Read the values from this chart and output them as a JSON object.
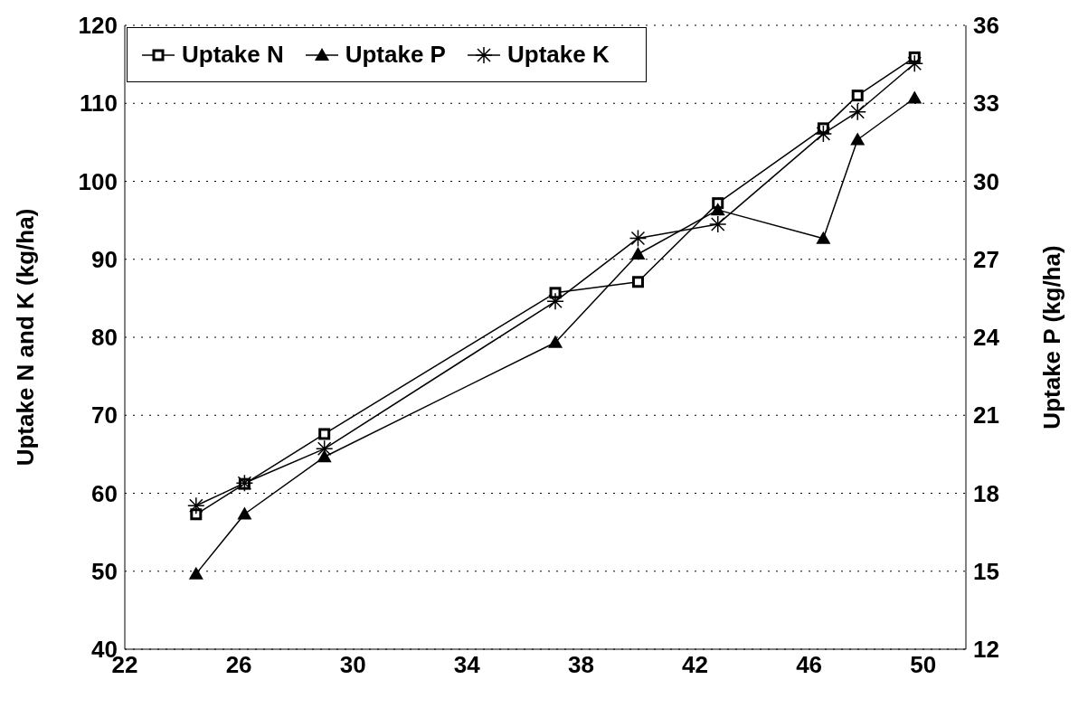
{
  "chart_data": {
    "type": "line",
    "ylabel": "Uptake N and K (kg/ha)",
    "y2label": "Uptake P (kg/ha)",
    "xlim": [
      22,
      51.5
    ],
    "xticks": [
      22,
      26,
      30,
      34,
      38,
      42,
      46,
      50
    ],
    "ylim": [
      40,
      120
    ],
    "yticks": [
      40,
      50,
      60,
      70,
      80,
      90,
      100,
      110,
      120
    ],
    "y2lim": [
      12,
      36
    ],
    "y2ticks": [
      12,
      15,
      18,
      21,
      24,
      27,
      30,
      33,
      36
    ],
    "grid": "y",
    "legend": "top left",
    "line_style": "solid",
    "series": [
      {
        "name": "Uptake N",
        "color": "#000000",
        "marker": "square",
        "x": [
          24.5,
          26.2,
          29,
          37.1,
          40,
          42.8,
          46.5,
          47.7,
          49.7
        ],
        "values": [
          57.3,
          61.2,
          67.6,
          85.7,
          87.1,
          97.2,
          106.8,
          111.0,
          115.9
        ]
      },
      {
        "name": "Uptake P",
        "color": "#000000",
        "marker": "triangle",
        "axis": "y2",
        "x": [
          24.5,
          26.2,
          29,
          37.1,
          40,
          42.8,
          46.5,
          47.7,
          49.7
        ],
        "values": [
          14.9,
          17.2,
          19.4,
          23.8,
          27.2,
          28.9,
          27.8,
          31.6,
          33.2
        ]
      },
      {
        "name": "Uptake K",
        "color": "#000000",
        "marker": "cross",
        "x": [
          24.5,
          26.2,
          29,
          37.1,
          40,
          42.8,
          46.5,
          47.7,
          49.7
        ],
        "values": [
          58.4,
          61.3,
          65.7,
          84.6,
          92.7,
          94.5,
          106.1,
          108.9,
          115.1
        ]
      }
    ]
  }
}
